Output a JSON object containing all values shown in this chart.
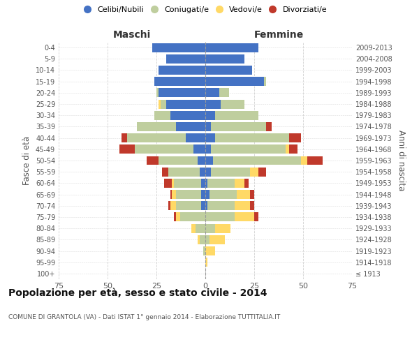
{
  "age_groups": [
    "100+",
    "95-99",
    "90-94",
    "85-89",
    "80-84",
    "75-79",
    "70-74",
    "65-69",
    "60-64",
    "55-59",
    "50-54",
    "45-49",
    "40-44",
    "35-39",
    "30-34",
    "25-29",
    "20-24",
    "15-19",
    "10-14",
    "5-9",
    "0-4"
  ],
  "birth_years": [
    "≤ 1913",
    "1914-1918",
    "1919-1923",
    "1924-1928",
    "1929-1933",
    "1934-1938",
    "1939-1943",
    "1944-1948",
    "1949-1953",
    "1954-1958",
    "1959-1963",
    "1964-1968",
    "1969-1973",
    "1974-1978",
    "1979-1983",
    "1984-1988",
    "1989-1993",
    "1994-1998",
    "1999-2003",
    "2004-2008",
    "2009-2013"
  ],
  "maschi": {
    "celibi": [
      0,
      0,
      0,
      0,
      0,
      0,
      2,
      2,
      2,
      3,
      4,
      6,
      10,
      15,
      18,
      20,
      24,
      26,
      24,
      20,
      27
    ],
    "coniugati": [
      0,
      0,
      1,
      3,
      5,
      13,
      13,
      13,
      14,
      16,
      20,
      30,
      30,
      20,
      8,
      3,
      1,
      0,
      0,
      0,
      0
    ],
    "vedovi": [
      0,
      0,
      0,
      1,
      2,
      2,
      3,
      2,
      1,
      0,
      0,
      0,
      0,
      0,
      0,
      1,
      0,
      0,
      0,
      0,
      0
    ],
    "divorziati": [
      0,
      0,
      0,
      0,
      0,
      1,
      1,
      1,
      4,
      3,
      6,
      8,
      3,
      0,
      0,
      0,
      0,
      0,
      0,
      0,
      0
    ]
  },
  "femmine": {
    "nubili": [
      0,
      0,
      0,
      0,
      0,
      0,
      1,
      2,
      1,
      3,
      4,
      3,
      5,
      3,
      5,
      8,
      7,
      30,
      24,
      20,
      27
    ],
    "coniugate": [
      0,
      0,
      0,
      2,
      5,
      15,
      14,
      14,
      14,
      20,
      45,
      38,
      38,
      28,
      22,
      12,
      5,
      1,
      0,
      0,
      0
    ],
    "vedove": [
      0,
      1,
      5,
      8,
      8,
      10,
      8,
      7,
      5,
      4,
      3,
      2,
      0,
      0,
      0,
      0,
      0,
      0,
      0,
      0,
      0
    ],
    "divorziate": [
      0,
      0,
      0,
      0,
      0,
      2,
      2,
      2,
      2,
      4,
      8,
      4,
      6,
      3,
      0,
      0,
      0,
      0,
      0,
      0,
      0
    ]
  },
  "colors": {
    "celibi": "#4472C4",
    "coniugati": "#BFCE9E",
    "vedovi": "#FFD966",
    "divorziati": "#C0392B"
  },
  "xlim": 75,
  "title": "Popolazione per età, sesso e stato civile - 2014",
  "subtitle": "COMUNE DI GRANTOLA (VA) - Dati ISTAT 1° gennaio 2014 - Elaborazione TUTTITALIA.IT",
  "ylabel_left": "Fasce di età",
  "ylabel_right": "Anni di nascita",
  "xlabel_left": "Maschi",
  "xlabel_right": "Femmine",
  "bg_color": "#FFFFFF",
  "grid_color": "#CCCCCC",
  "legend_labels": [
    "Celibi/Nubili",
    "Coniugati/e",
    "Vedovi/e",
    "Divorziati/e"
  ],
  "legend_colors": [
    "#4472C4",
    "#BFCE9E",
    "#FFD966",
    "#C0392B"
  ]
}
